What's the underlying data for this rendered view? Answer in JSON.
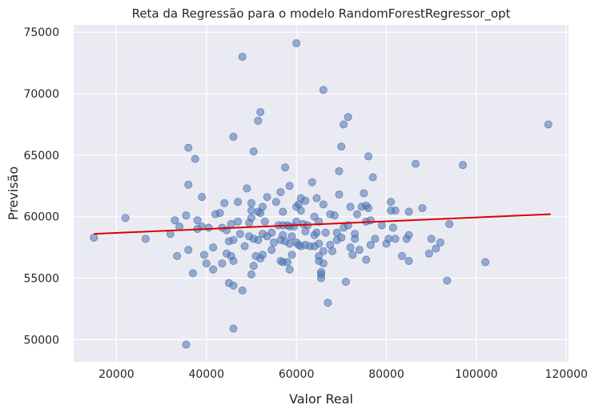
{
  "chart_data": {
    "type": "scatter",
    "title": "Reta da Regressão para o modelo RandomForestRegressor_opt",
    "xlabel": "Valor Real",
    "ylabel": "Previsão",
    "xlim": [
      10500,
      120500
    ],
    "ylim": [
      48200,
      75600
    ],
    "xticks": [
      20000,
      40000,
      60000,
      80000,
      100000,
      120000
    ],
    "yticks": [
      50000,
      55000,
      60000,
      65000,
      70000,
      75000
    ],
    "grid": true,
    "colors": {
      "background": "#eaeaf2",
      "grid": "#ffffff",
      "points": "#4c72b0",
      "line": "#dd0000"
    },
    "regression_line": {
      "x": [
        15000,
        116500
      ],
      "y": [
        58600,
        60200
      ]
    },
    "points": [
      [
        15000,
        58300
      ],
      [
        22000,
        59900
      ],
      [
        26500,
        58200
      ],
      [
        32000,
        58600
      ],
      [
        33000,
        59700
      ],
      [
        33500,
        56800
      ],
      [
        34000,
        59200
      ],
      [
        35500,
        60100
      ],
      [
        35500,
        49600
      ],
      [
        36000,
        65600
      ],
      [
        36000,
        62600
      ],
      [
        36000,
        57300
      ],
      [
        37000,
        55400
      ],
      [
        37500,
        64700
      ],
      [
        38000,
        59000
      ],
      [
        38000,
        59700
      ],
      [
        39000,
        61600
      ],
      [
        39000,
        59200
      ],
      [
        39500,
        56900
      ],
      [
        40000,
        56200
      ],
      [
        40500,
        59100
      ],
      [
        41500,
        57500
      ],
      [
        41500,
        55700
      ],
      [
        42000,
        60200
      ],
      [
        43000,
        60300
      ],
      [
        43500,
        59100
      ],
      [
        43500,
        56200
      ],
      [
        44000,
        61100
      ],
      [
        44500,
        58900
      ],
      [
        44500,
        57000
      ],
      [
        45000,
        58000
      ],
      [
        45000,
        54600
      ],
      [
        45500,
        59400
      ],
      [
        45500,
        56800
      ],
      [
        46000,
        66500
      ],
      [
        46000,
        58100
      ],
      [
        46000,
        56400
      ],
      [
        46000,
        54400
      ],
      [
        46000,
        50900
      ],
      [
        47000,
        61200
      ],
      [
        47000,
        59600
      ],
      [
        47500,
        58600
      ],
      [
        48000,
        73000
      ],
      [
        48000,
        54000
      ],
      [
        48500,
        57600
      ],
      [
        49000,
        62300
      ],
      [
        49500,
        59500
      ],
      [
        49500,
        58400
      ],
      [
        50000,
        61100
      ],
      [
        50000,
        60500
      ],
      [
        50000,
        59900
      ],
      [
        50000,
        55300
      ],
      [
        50500,
        65300
      ],
      [
        50500,
        58200
      ],
      [
        50500,
        56000
      ],
      [
        51000,
        56800
      ],
      [
        51500,
        67800
      ],
      [
        51500,
        60400
      ],
      [
        51500,
        58100
      ],
      [
        52000,
        68500
      ],
      [
        52000,
        60300
      ],
      [
        52000,
        56600
      ],
      [
        52500,
        60800
      ],
      [
        52500,
        58600
      ],
      [
        52500,
        56900
      ],
      [
        53000,
        59600
      ],
      [
        53500,
        61600
      ],
      [
        53500,
        58400
      ],
      [
        54500,
        58700
      ],
      [
        54500,
        57300
      ],
      [
        55000,
        57900
      ],
      [
        55500,
        61200
      ],
      [
        56000,
        59300
      ],
      [
        56500,
        62000
      ],
      [
        56500,
        58100
      ],
      [
        56500,
        56400
      ],
      [
        57000,
        60400
      ],
      [
        57000,
        59300
      ],
      [
        57000,
        58500
      ],
      [
        57000,
        56300
      ],
      [
        57500,
        64000
      ],
      [
        57500,
        58000
      ],
      [
        58000,
        59300
      ],
      [
        58000,
        56300
      ],
      [
        58500,
        62500
      ],
      [
        58500,
        59200
      ],
      [
        58500,
        57800
      ],
      [
        58500,
        55700
      ],
      [
        59000,
        58400
      ],
      [
        59000,
        56900
      ],
      [
        59500,
        59200
      ],
      [
        60000,
        74100
      ],
      [
        60000,
        60800
      ],
      [
        60000,
        59600
      ],
      [
        60000,
        57900
      ],
      [
        60500,
        61000
      ],
      [
        60500,
        57700
      ],
      [
        61000,
        61500
      ],
      [
        61000,
        60500
      ],
      [
        61000,
        57600
      ],
      [
        61500,
        59400
      ],
      [
        62000,
        61300
      ],
      [
        62000,
        58800
      ],
      [
        62000,
        57700
      ],
      [
        62500,
        59300
      ],
      [
        63000,
        57600
      ],
      [
        63500,
        62800
      ],
      [
        64000,
        60000
      ],
      [
        64000,
        58500
      ],
      [
        64000,
        57600
      ],
      [
        64500,
        61500
      ],
      [
        64500,
        58700
      ],
      [
        65000,
        59600
      ],
      [
        65000,
        57800
      ],
      [
        65000,
        56800
      ],
      [
        65000,
        56400
      ],
      [
        65500,
        55500
      ],
      [
        65500,
        55300
      ],
      [
        65500,
        55000
      ],
      [
        66000,
        70300
      ],
      [
        66000,
        61000
      ],
      [
        66000,
        57200
      ],
      [
        66000,
        56200
      ],
      [
        66500,
        58700
      ],
      [
        67000,
        53000
      ],
      [
        67500,
        60200
      ],
      [
        67500,
        57700
      ],
      [
        68000,
        57200
      ],
      [
        68500,
        60100
      ],
      [
        69000,
        58700
      ],
      [
        69000,
        58100
      ],
      [
        69500,
        63700
      ],
      [
        69500,
        61800
      ],
      [
        70000,
        65700
      ],
      [
        70000,
        58300
      ],
      [
        70500,
        67500
      ],
      [
        70500,
        59100
      ],
      [
        71000,
        54700
      ],
      [
        71500,
        68100
      ],
      [
        71500,
        59300
      ],
      [
        72000,
        60800
      ],
      [
        72000,
        57500
      ],
      [
        72500,
        56900
      ],
      [
        73000,
        58600
      ],
      [
        73000,
        58200
      ],
      [
        73500,
        60200
      ],
      [
        74000,
        57300
      ],
      [
        74500,
        60800
      ],
      [
        75000,
        61900
      ],
      [
        75500,
        60900
      ],
      [
        75500,
        59600
      ],
      [
        75500,
        56500
      ],
      [
        76000,
        64900
      ],
      [
        76000,
        60700
      ],
      [
        76500,
        59700
      ],
      [
        76500,
        57700
      ],
      [
        77000,
        63200
      ],
      [
        77500,
        58200
      ],
      [
        79000,
        59300
      ],
      [
        80000,
        57800
      ],
      [
        80500,
        58200
      ],
      [
        81000,
        61200
      ],
      [
        81000,
        60500
      ],
      [
        81500,
        59100
      ],
      [
        82000,
        60500
      ],
      [
        82000,
        58200
      ],
      [
        83500,
        56800
      ],
      [
        84500,
        58200
      ],
      [
        85000,
        60400
      ],
      [
        85000,
        58500
      ],
      [
        85000,
        56400
      ],
      [
        86500,
        64300
      ],
      [
        88000,
        60700
      ],
      [
        89500,
        57000
      ],
      [
        90000,
        58200
      ],
      [
        91000,
        57400
      ],
      [
        92000,
        57900
      ],
      [
        93500,
        54800
      ],
      [
        94000,
        59400
      ],
      [
        97000,
        64200
      ],
      [
        102000,
        56300
      ],
      [
        116000,
        67500
      ]
    ]
  }
}
